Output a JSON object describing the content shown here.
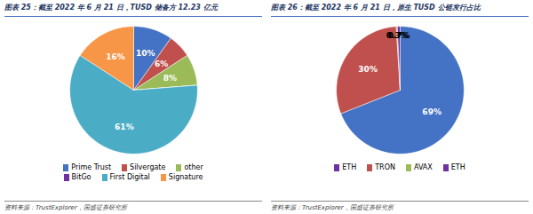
{
  "chart_data": [
    {
      "type": "pie",
      "title": "图表 25：截至 2022 年 6 月 21 日，TUSD 储备方 12.23 亿元",
      "annotations": [
        "资料来源：TrustExplorer，国盛证券研究所"
      ],
      "categories": [
        "Prime Trust",
        "Silvergate",
        "other",
        "BitGo",
        "First Digital",
        "Signature"
      ],
      "values": [
        10,
        6,
        8,
        0.01,
        61,
        16
      ],
      "value_labels": [
        "10%",
        "6%",
        "8%",
        null,
        "61%",
        "16%"
      ],
      "colors": [
        "#4472C4",
        "#C0504D",
        "#9BBB59",
        "#7030A0",
        "#4BACC6",
        "#F79646"
      ],
      "data_labels": true,
      "legend": "bottom"
    },
    {
      "type": "pie",
      "title": "图表 26：截至 2022 年 6 月 21 日，原生 TUSD 公链发行占比",
      "annotations": [
        "资料来源：TrustExplorer，国盛证券研究所"
      ],
      "categories": [
        "ETH",
        "TRON",
        "AVAX",
        "ETH"
      ],
      "values": [
        69,
        30,
        0.3,
        0.7
      ],
      "value_labels": [
        "69%",
        "30%",
        "0.3%",
        "0.7%"
      ],
      "colors": [
        "#4472C4",
        "#C0504D",
        "#9BBB59",
        "#7030A0"
      ],
      "data_labels": true,
      "legend": "bottom"
    }
  ]
}
